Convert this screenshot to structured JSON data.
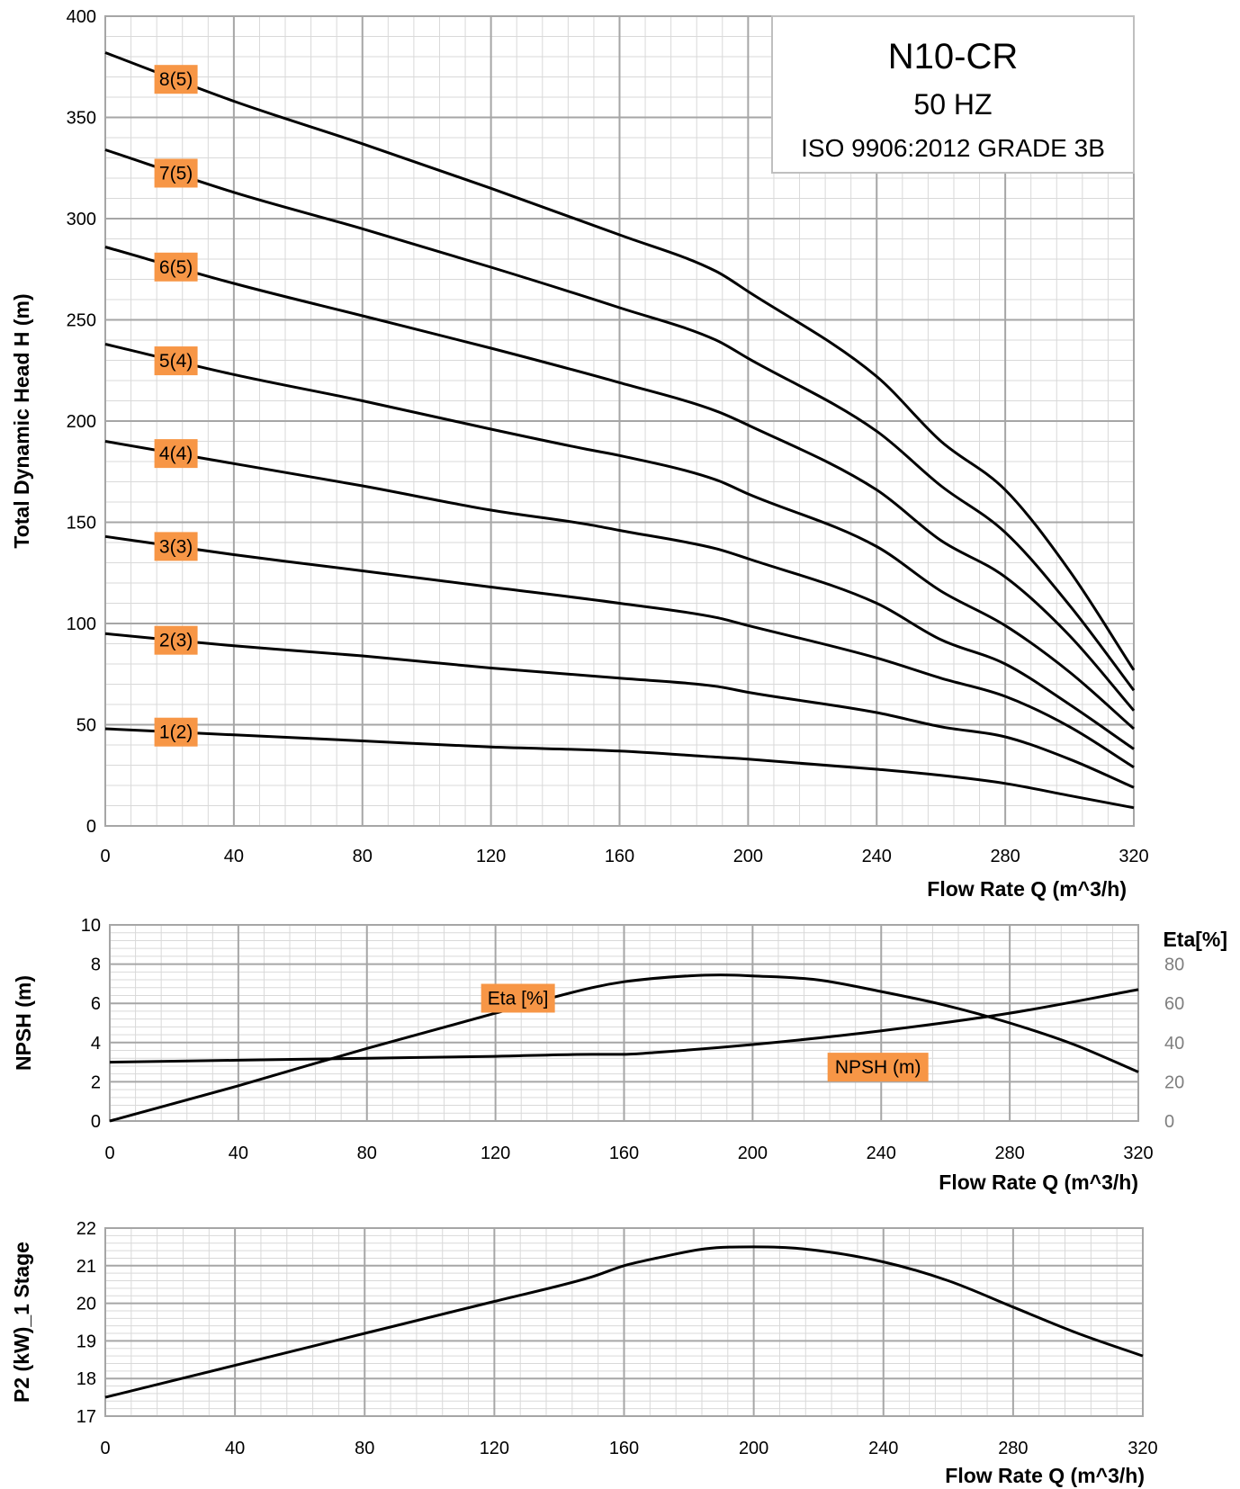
{
  "info_box": {
    "model": "N10-CR",
    "frequency": "50 HZ",
    "standard": "ISO 9906:2012  GRADE 3B"
  },
  "chart_data": [
    {
      "type": "line",
      "xlabel": "Flow Rate Q (m^3/h)",
      "ylabel": "Total Dynamic Head  H (m)",
      "xlim": [
        0,
        320
      ],
      "ylim": [
        0,
        400
      ],
      "x_ticks": [
        0,
        40,
        80,
        120,
        160,
        200,
        240,
        280,
        320
      ],
      "y_ticks": [
        0,
        50,
        100,
        150,
        200,
        250,
        300,
        350,
        400
      ],
      "grid": true,
      "label_color": "#f79646",
      "series": [
        {
          "name": "8(5)",
          "x": [
            0,
            40,
            80,
            120,
            160,
            190,
            200,
            240,
            260,
            280,
            300,
            320
          ],
          "y": [
            382,
            358,
            337,
            315,
            292,
            274,
            264,
            222,
            190,
            166,
            126,
            77
          ]
        },
        {
          "name": "7(5)",
          "x": [
            0,
            40,
            80,
            120,
            160,
            190,
            200,
            240,
            260,
            280,
            300,
            320
          ],
          "y": [
            334,
            313,
            295,
            276,
            256,
            240,
            231,
            195,
            168,
            145,
            109,
            67
          ]
        },
        {
          "name": "6(5)",
          "x": [
            0,
            40,
            80,
            120,
            160,
            190,
            200,
            240,
            260,
            280,
            300,
            320
          ],
          "y": [
            286,
            268,
            252,
            236,
            219,
            205,
            198,
            166,
            141,
            123,
            94,
            57
          ]
        },
        {
          "name": "5(4)",
          "x": [
            0,
            40,
            80,
            120,
            150,
            160,
            190,
            200,
            240,
            260,
            280,
            300,
            320
          ],
          "y": [
            238,
            223,
            210,
            196,
            186,
            183,
            171,
            164,
            138,
            116,
            99,
            76,
            48
          ]
        },
        {
          "name": "4(4)",
          "x": [
            0,
            40,
            80,
            120,
            150,
            160,
            190,
            200,
            240,
            260,
            280,
            300,
            320
          ],
          "y": [
            190,
            179,
            168,
            156,
            149,
            146,
            137,
            132,
            110,
            92,
            80,
            60,
            38
          ]
        },
        {
          "name": "3(3)",
          "x": [
            0,
            40,
            80,
            120,
            160,
            190,
            200,
            240,
            260,
            280,
            300,
            320
          ],
          "y": [
            143,
            134,
            126,
            118,
            110,
            103,
            99,
            83,
            73,
            64,
            49,
            29
          ]
        },
        {
          "name": "2(3)",
          "x": [
            0,
            40,
            80,
            120,
            160,
            190,
            200,
            240,
            260,
            280,
            300,
            320
          ],
          "y": [
            95,
            89,
            84,
            78,
            73,
            69,
            66,
            56,
            49,
            44,
            33,
            19
          ]
        },
        {
          "name": "1(2)",
          "x": [
            0,
            40,
            80,
            120,
            160,
            190,
            200,
            240,
            260,
            280,
            300,
            320
          ],
          "y": [
            48,
            45,
            42,
            39,
            37,
            34,
            33,
            28,
            25,
            21,
            15,
            9
          ]
        }
      ]
    },
    {
      "type": "line",
      "xlabel": "Flow Rate Q (m^3/h)",
      "ylabel": "NPSH (m)",
      "y2label": "Eta[%]",
      "xlim": [
        0,
        320
      ],
      "ylim": [
        0,
        10
      ],
      "y2lim": [
        0,
        100
      ],
      "x_ticks": [
        0,
        40,
        80,
        120,
        160,
        200,
        240,
        280,
        320
      ],
      "y_ticks": [
        0,
        2,
        4,
        6,
        8,
        10
      ],
      "y2_ticks": [
        0,
        20,
        40,
        60,
        80
      ],
      "grid": true,
      "label_color": "#f79646",
      "series": [
        {
          "name": "Eta [%]",
          "axis": "right",
          "x": [
            0,
            40,
            80,
            120,
            150,
            160,
            180,
            190,
            200,
            220,
            240,
            260,
            280,
            300,
            320
          ],
          "y": [
            0,
            18,
            37,
            55,
            68,
            71,
            74,
            74.5,
            74,
            72,
            66,
            59,
            50,
            39,
            25
          ]
        },
        {
          "name": "NPSH (m)",
          "axis": "left",
          "x": [
            0,
            40,
            80,
            120,
            150,
            160,
            170,
            200,
            240,
            280,
            320
          ],
          "y": [
            3,
            3.1,
            3.2,
            3.3,
            3.4,
            3.4,
            3.5,
            3.9,
            4.6,
            5.5,
            6.7
          ]
        }
      ]
    },
    {
      "type": "line",
      "xlabel": "Flow Rate Q (m^3/h)",
      "ylabel": "P2 (kW)_1 Stage",
      "xlim": [
        0,
        320
      ],
      "ylim": [
        17,
        22
      ],
      "x_ticks": [
        0,
        40,
        80,
        120,
        160,
        200,
        240,
        280,
        320
      ],
      "y_ticks": [
        17,
        18,
        19,
        20,
        21,
        22
      ],
      "grid": true,
      "series": [
        {
          "x": [
            0,
            40,
            80,
            120,
            150,
            160,
            170,
            185,
            200,
            215,
            240,
            260,
            280,
            300,
            320
          ],
          "y": [
            17.5,
            18.35,
            19.2,
            20.05,
            20.7,
            21.0,
            21.2,
            21.45,
            21.5,
            21.45,
            21.1,
            20.6,
            19.9,
            19.2,
            18.6
          ]
        }
      ]
    }
  ]
}
